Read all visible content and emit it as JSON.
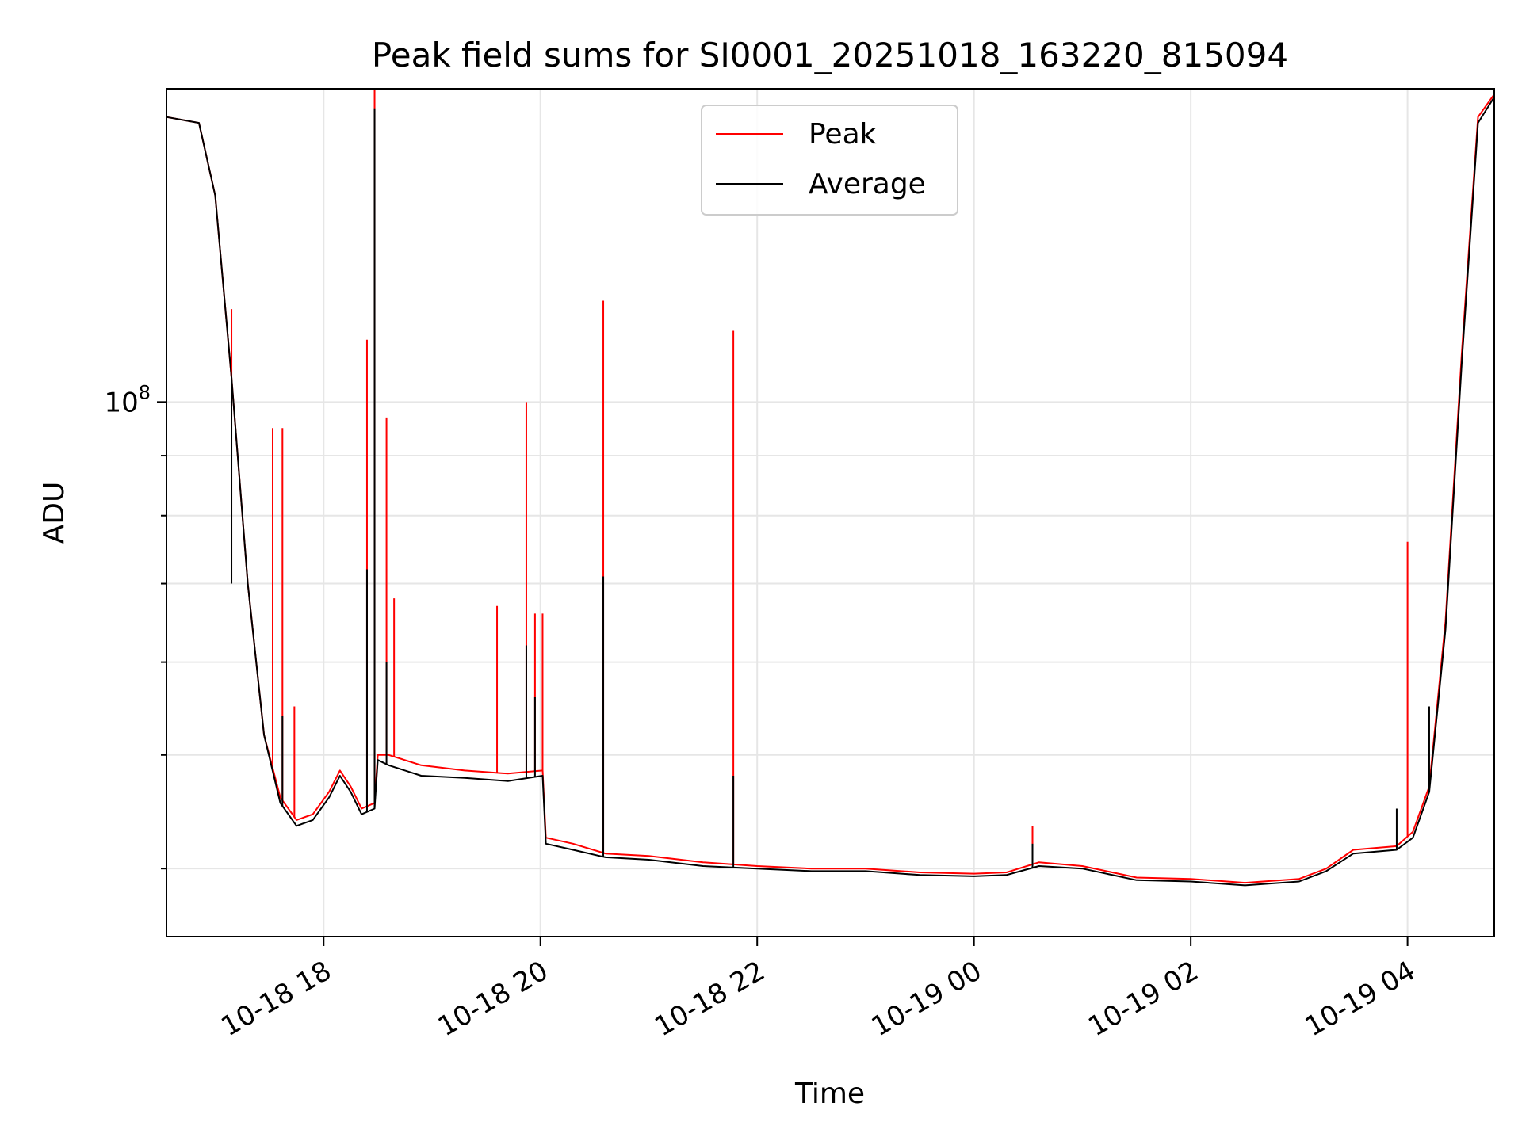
{
  "chart_data": {
    "type": "line",
    "title": "Peak field sums for SI0001_20251018_163220_815094",
    "xlabel": "Time",
    "ylabel": "ADU",
    "yscale": "log",
    "grid": true,
    "legend_position": "top-center",
    "x_tick_labels": [
      "10-18 18",
      "10-18 20",
      "10-18 22",
      "10-19 00",
      "10-19 02",
      "10-19 04"
    ],
    "x_tick_hours": [
      18,
      20,
      22,
      24,
      26,
      28
    ],
    "xlim_hours": [
      16.55,
      28.8
    ],
    "ylim": [
      35000000,
      185000000
    ],
    "y_major_tick": {
      "value": 100000000,
      "base": "10",
      "exp": "8"
    },
    "y_minor_ticks": [
      40000000,
      50000000,
      60000000,
      70000000,
      80000000,
      90000000
    ],
    "series": [
      {
        "name": "Peak",
        "color": "#ff0000",
        "baseline": [
          [
            16.55,
            175000000
          ],
          [
            16.85,
            173000000
          ],
          [
            17.0,
            150000000
          ],
          [
            17.15,
            105000000
          ],
          [
            17.3,
            70000000
          ],
          [
            17.45,
            52000000
          ],
          [
            17.6,
            46000000
          ],
          [
            17.75,
            44000000
          ],
          [
            17.9,
            44500000
          ],
          [
            18.05,
            46500000
          ],
          [
            18.15,
            48500000
          ],
          [
            18.25,
            47000000
          ],
          [
            18.35,
            45000000
          ],
          [
            18.47,
            45500000
          ],
          [
            18.5,
            50000000
          ],
          [
            18.6,
            50000000
          ],
          [
            18.9,
            49000000
          ],
          [
            19.3,
            48500000
          ],
          [
            19.7,
            48200000
          ],
          [
            20.02,
            48500000
          ],
          [
            20.05,
            42500000
          ],
          [
            20.3,
            42000000
          ],
          [
            20.6,
            41200000
          ],
          [
            21.0,
            41000000
          ],
          [
            21.5,
            40500000
          ],
          [
            22.0,
            40200000
          ],
          [
            22.5,
            40000000
          ],
          [
            23.0,
            40000000
          ],
          [
            23.5,
            39700000
          ],
          [
            24.0,
            39600000
          ],
          [
            24.3,
            39700000
          ],
          [
            24.6,
            40500000
          ],
          [
            25.0,
            40200000
          ],
          [
            25.5,
            39300000
          ],
          [
            26.0,
            39200000
          ],
          [
            26.5,
            38900000
          ],
          [
            27.0,
            39200000
          ],
          [
            27.25,
            40000000
          ],
          [
            27.5,
            41500000
          ],
          [
            27.9,
            41800000
          ],
          [
            28.05,
            43000000
          ],
          [
            28.2,
            47000000
          ],
          [
            28.35,
            65000000
          ],
          [
            28.5,
            110000000
          ],
          [
            28.65,
            175000000
          ],
          [
            28.8,
            183000000
          ]
        ],
        "spikes": [
          [
            17.15,
            120000000
          ],
          [
            17.53,
            95000000
          ],
          [
            17.62,
            95000000
          ],
          [
            17.73,
            55000000
          ],
          [
            18.4,
            113000000
          ],
          [
            18.47,
            185000000
          ],
          [
            18.58,
            97000000
          ],
          [
            18.65,
            68000000
          ],
          [
            19.6,
            67000000
          ],
          [
            19.87,
            100000000
          ],
          [
            19.95,
            66000000
          ],
          [
            20.02,
            66000000
          ],
          [
            20.58,
            122000000
          ],
          [
            21.78,
            115000000
          ],
          [
            24.54,
            43500000
          ],
          [
            28.0,
            76000000
          ]
        ]
      },
      {
        "name": "Average",
        "color": "#000000",
        "baseline": [
          [
            16.55,
            175000000
          ],
          [
            16.85,
            173000000
          ],
          [
            17.0,
            150000000
          ],
          [
            17.15,
            105000000
          ],
          [
            17.3,
            70000000
          ],
          [
            17.45,
            52000000
          ],
          [
            17.6,
            45500000
          ],
          [
            17.75,
            43500000
          ],
          [
            17.9,
            44000000
          ],
          [
            18.05,
            46000000
          ],
          [
            18.15,
            48000000
          ],
          [
            18.25,
            46500000
          ],
          [
            18.35,
            44500000
          ],
          [
            18.47,
            45000000
          ],
          [
            18.5,
            49500000
          ],
          [
            18.6,
            49000000
          ],
          [
            18.9,
            48000000
          ],
          [
            19.3,
            47800000
          ],
          [
            19.7,
            47500000
          ],
          [
            20.02,
            48000000
          ],
          [
            20.05,
            42000000
          ],
          [
            20.3,
            41500000
          ],
          [
            20.6,
            40900000
          ],
          [
            21.0,
            40700000
          ],
          [
            21.5,
            40200000
          ],
          [
            22.0,
            40000000
          ],
          [
            22.5,
            39800000
          ],
          [
            23.0,
            39800000
          ],
          [
            23.5,
            39500000
          ],
          [
            24.0,
            39400000
          ],
          [
            24.3,
            39500000
          ],
          [
            24.6,
            40200000
          ],
          [
            25.0,
            40000000
          ],
          [
            25.5,
            39100000
          ],
          [
            26.0,
            39000000
          ],
          [
            26.5,
            38700000
          ],
          [
            27.0,
            39000000
          ],
          [
            27.25,
            39800000
          ],
          [
            27.5,
            41200000
          ],
          [
            27.9,
            41500000
          ],
          [
            28.05,
            42500000
          ],
          [
            28.2,
            46500000
          ],
          [
            28.35,
            64000000
          ],
          [
            28.5,
            108000000
          ],
          [
            28.65,
            173000000
          ],
          [
            28.8,
            182000000
          ]
        ],
        "spikes": [
          [
            17.15,
            70000000
          ],
          [
            17.62,
            54000000
          ],
          [
            18.4,
            72000000
          ],
          [
            18.47,
            178000000
          ],
          [
            18.58,
            60000000
          ],
          [
            19.87,
            62000000
          ],
          [
            19.95,
            56000000
          ],
          [
            20.58,
            71000000
          ],
          [
            21.78,
            48000000
          ],
          [
            24.54,
            42000000
          ],
          [
            27.9,
            45000000
          ],
          [
            28.2,
            55000000
          ]
        ]
      }
    ]
  }
}
